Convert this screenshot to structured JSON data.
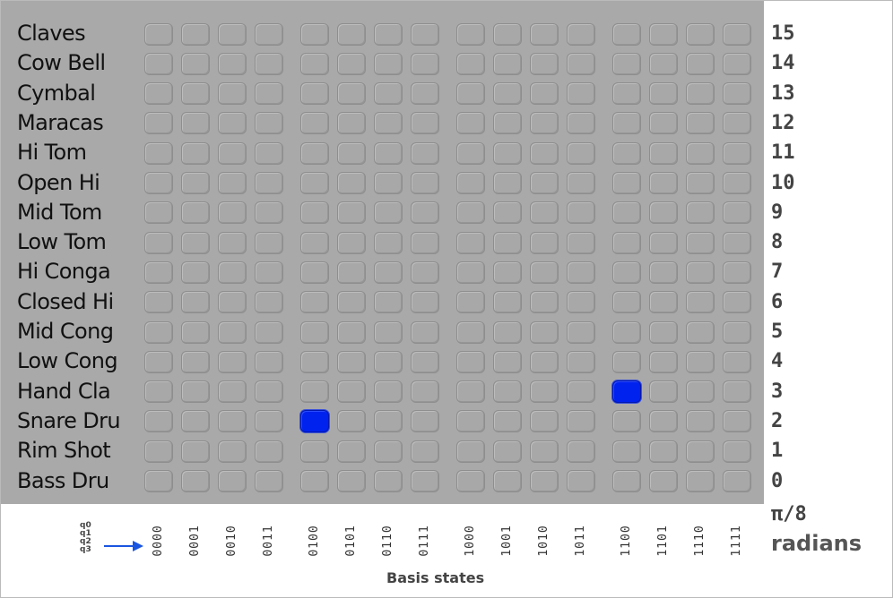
{
  "instruments": [
    "Claves",
    "Cow Bell",
    "Cymbal",
    "Maracas",
    "Hi Tom",
    "Open Hi",
    "Mid Tom",
    "Low Tom",
    "Hi Conga",
    "Closed Hi",
    "Mid Cong",
    "Low Cong",
    "Hand Cla",
    "Snare Dru",
    "Rim Shot",
    "Bass Dru"
  ],
  "phases": [
    "15",
    "14",
    "13",
    "12",
    "11",
    "10",
    "9",
    "8",
    "7",
    "6",
    "5",
    "4",
    "3",
    "2",
    "1",
    "0"
  ],
  "phase_unit": "π/8",
  "phase_unit_word": "radians",
  "basis_states": [
    "0000",
    "0001",
    "0010",
    "0011",
    "0100",
    "0101",
    "0110",
    "0111",
    "1000",
    "1001",
    "1010",
    "1011",
    "1100",
    "1101",
    "1110",
    "1111"
  ],
  "qubits": [
    "q0",
    "q1",
    "q2",
    "q3"
  ],
  "axis_title": "Basis states",
  "active_cells": [
    {
      "row": 13,
      "col": 4
    },
    {
      "row": 12,
      "col": 12
    }
  ],
  "colors": {
    "active": "#0022ee",
    "arrow": "#1a55e0"
  },
  "icons": {
    "arrow": "right-arrow-icon"
  }
}
